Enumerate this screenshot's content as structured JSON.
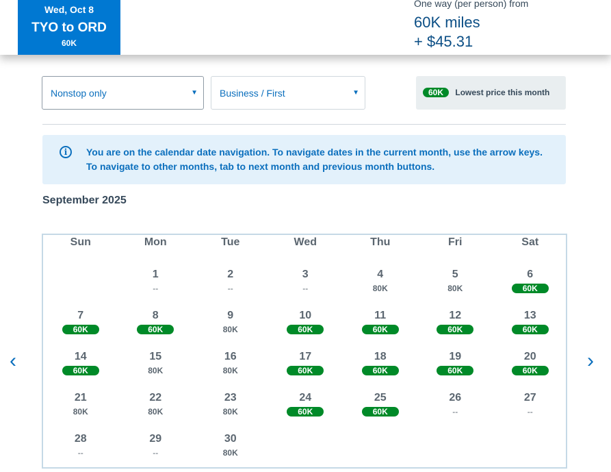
{
  "header": {
    "tab": {
      "date": "Wed, Oct 8",
      "route": "TYO to ORD",
      "price": "60K"
    },
    "fare": {
      "label": "One way (per person) from",
      "miles": "60K miles",
      "cash": "+ $45.31"
    }
  },
  "filters": {
    "stops": "Nonstop only",
    "cabin": "Business / First"
  },
  "legend": {
    "pill": "60K",
    "text": "Lowest price this month"
  },
  "info": {
    "icon": "info-icon",
    "text": "You are on the calendar date navigation. To navigate dates in the current month, use the arrow keys. To navigate to other months, tab to next month and previous month buttons."
  },
  "calendar": {
    "month": "September 2025",
    "weekdays": [
      "Sun",
      "Mon",
      "Tue",
      "Wed",
      "Thu",
      "Fri",
      "Sat"
    ],
    "first_weekday": 1,
    "days": [
      {
        "day": "1",
        "price": "--"
      },
      {
        "day": "2",
        "price": "--"
      },
      {
        "day": "3",
        "price": "--"
      },
      {
        "day": "4",
        "price": "80K"
      },
      {
        "day": "5",
        "price": "80K"
      },
      {
        "day": "6",
        "price": "60K",
        "lowest": true
      },
      {
        "day": "7",
        "price": "60K",
        "lowest": true
      },
      {
        "day": "8",
        "price": "60K",
        "lowest": true
      },
      {
        "day": "9",
        "price": "80K"
      },
      {
        "day": "10",
        "price": "60K",
        "lowest": true
      },
      {
        "day": "11",
        "price": "60K",
        "lowest": true
      },
      {
        "day": "12",
        "price": "60K",
        "lowest": true
      },
      {
        "day": "13",
        "price": "60K",
        "lowest": true
      },
      {
        "day": "14",
        "price": "60K",
        "lowest": true
      },
      {
        "day": "15",
        "price": "80K"
      },
      {
        "day": "16",
        "price": "80K"
      },
      {
        "day": "17",
        "price": "60K",
        "lowest": true
      },
      {
        "day": "18",
        "price": "60K",
        "lowest": true
      },
      {
        "day": "19",
        "price": "60K",
        "lowest": true
      },
      {
        "day": "20",
        "price": "60K",
        "lowest": true
      },
      {
        "day": "21",
        "price": "80K"
      },
      {
        "day": "22",
        "price": "80K"
      },
      {
        "day": "23",
        "price": "80K"
      },
      {
        "day": "24",
        "price": "60K",
        "lowest": true
      },
      {
        "day": "25",
        "price": "60K",
        "lowest": true
      },
      {
        "day": "26",
        "price": "--"
      },
      {
        "day": "27",
        "price": "--"
      },
      {
        "day": "28",
        "price": "--"
      },
      {
        "day": "29",
        "price": "--"
      },
      {
        "day": "30",
        "price": "80K"
      }
    ]
  },
  "nav": {
    "prev": "‹",
    "next": "›"
  },
  "colors": {
    "brand": "#0078d2",
    "lowest": "#008a28"
  }
}
